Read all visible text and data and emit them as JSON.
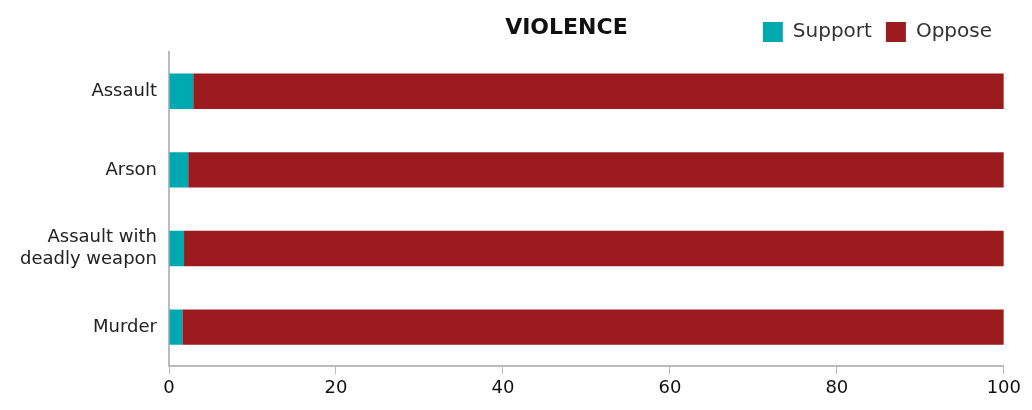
{
  "chart_data": {
    "type": "bar",
    "orientation": "horizontal",
    "stacked": true,
    "title": "VIOLENCE",
    "categories": [
      "Assault",
      "Arson",
      "Assault with deadly weapon",
      "Murder"
    ],
    "series": [
      {
        "name": "Support",
        "color": "#00a9b0",
        "values": [
          2.9,
          2.3,
          1.8,
          1.6
        ]
      },
      {
        "name": "Oppose",
        "color": "#9b1b1f",
        "values": [
          97.1,
          97.7,
          98.2,
          98.4
        ]
      }
    ],
    "xlim": [
      0,
      100
    ],
    "xticks": [
      0,
      20,
      40,
      60,
      80,
      100
    ],
    "grid": false,
    "legend": "top right"
  }
}
